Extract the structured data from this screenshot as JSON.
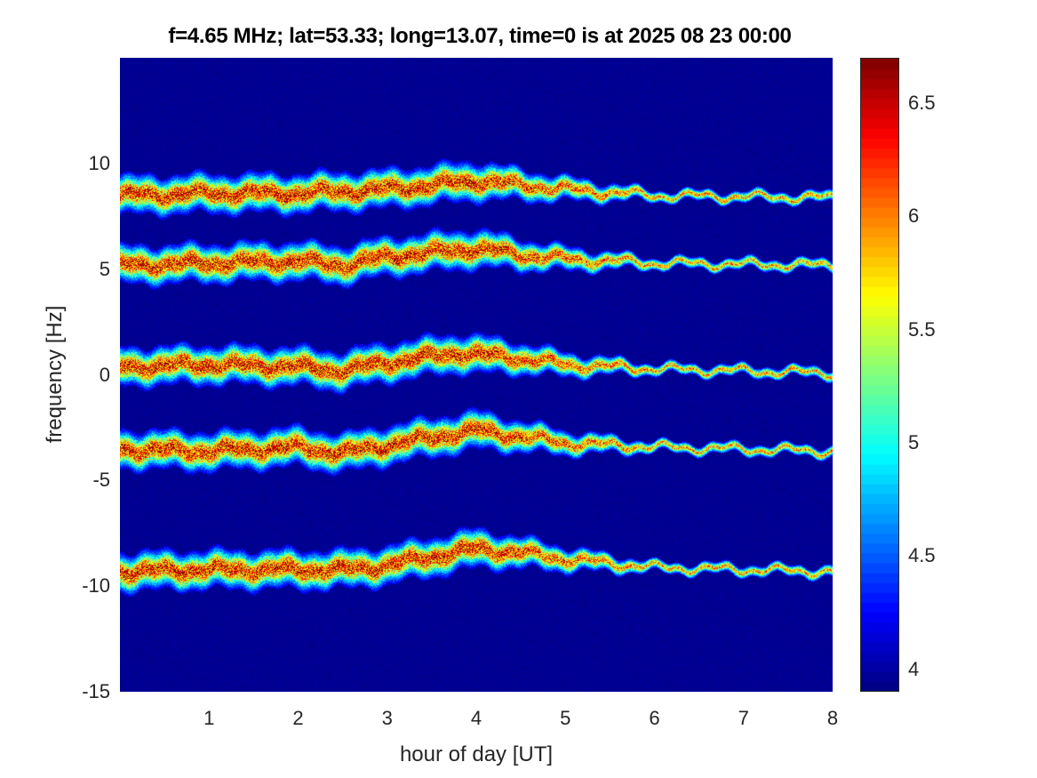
{
  "chart_data": {
    "type": "heatmap",
    "title": "f=4.65 MHz;  lat=53.33; long=13.07, time=0 is at 2025 08 23 00:00",
    "xlabel": "hour of day [UT]",
    "ylabel": "frequency [Hz]",
    "xlim": [
      0,
      8
    ],
    "ylim": [
      -15,
      15
    ],
    "xticks": [
      "1",
      "2",
      "3",
      "4",
      "5",
      "6",
      "7",
      "8"
    ],
    "yticks": [
      "-15",
      "-10",
      "-5",
      "0",
      "5",
      "10"
    ],
    "colormap": "jet",
    "clim": [
      3.9,
      6.7
    ],
    "colorbar_ticks": [
      "4",
      "4.5",
      "5",
      "5.5",
      "6",
      "6.5"
    ],
    "background_value": 3.95,
    "traces": [
      {
        "hours": [
          0,
          1,
          2,
          3,
          3.5,
          4,
          4.5,
          5,
          6,
          8
        ],
        "freq": [
          8.5,
          8.6,
          8.6,
          8.8,
          9.0,
          9.2,
          9.0,
          8.8,
          8.5,
          8.4
        ]
      },
      {
        "hours": [
          0,
          1,
          2,
          2.5,
          3,
          4,
          4.5,
          5,
          6,
          8
        ],
        "freq": [
          5.2,
          5.3,
          5.4,
          5.2,
          5.6,
          6.0,
          5.7,
          5.5,
          5.3,
          5.2
        ]
      },
      {
        "hours": [
          0,
          1,
          2,
          2.5,
          3,
          3.8,
          4.5,
          5,
          6,
          8
        ],
        "freq": [
          0.4,
          0.5,
          0.4,
          0.2,
          0.6,
          1.05,
          0.8,
          0.5,
          0.3,
          0.1
        ]
      },
      {
        "hours": [
          0,
          1,
          2,
          2.5,
          3,
          4,
          4.5,
          5,
          6,
          8
        ],
        "freq": [
          -3.5,
          -3.6,
          -3.4,
          -3.7,
          -3.3,
          -2.6,
          -2.9,
          -3.2,
          -3.4,
          -3.6
        ]
      },
      {
        "hours": [
          0,
          1,
          2,
          2.5,
          3,
          4,
          4.5,
          5,
          6,
          8
        ],
        "freq": [
          -9.3,
          -9.2,
          -9.2,
          -9.2,
          -9.0,
          -8.2,
          -8.4,
          -8.7,
          -9.1,
          -9.3
        ]
      }
    ]
  }
}
